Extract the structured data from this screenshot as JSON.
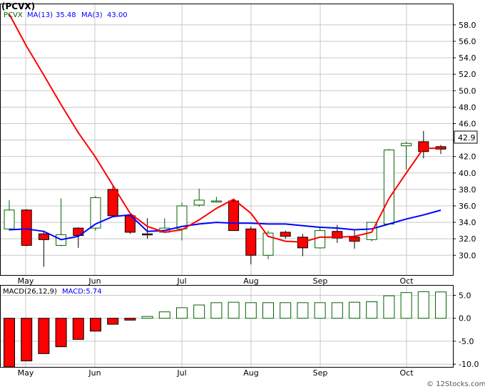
{
  "watermark": "© 12Stocks.com",
  "price_chart": {
    "ticker_label": "(PCVX)",
    "legend_symbol": "PCVX",
    "ma13_label": "MA(13)",
    "ma13_value": "35.48",
    "ma3_label": "MA(3)",
    "ma3_value": "43.00",
    "last_price_label": "42.9",
    "colors": {
      "up_fill": "#ffffff",
      "up_stroke": "#006400",
      "down_fill": "#ff0000",
      "ma13": "#0000ff",
      "ma3": "#ff0000",
      "grid": "#c8c8c8"
    }
  },
  "macd_panel": {
    "label": "MACD(26,12,9)",
    "value_label": "MACD:5.74"
  },
  "chart_data": [
    {
      "type": "candlestick",
      "x_month_labels": [
        "May",
        "Jun",
        "Jul",
        "Aug",
        "Sep",
        "Oct"
      ],
      "y_ticks": [
        "30.0",
        "32.0",
        "34.0",
        "36.0",
        "38.0",
        "40.0",
        "42.0",
        "44.0",
        "46.0",
        "48.0",
        "50.0",
        "52.0",
        "54.0",
        "56.0",
        "58.0"
      ],
      "ylim": [
        27.6,
        60.5
      ],
      "candles": [
        {
          "o": 33.2,
          "h": 36.7,
          "l": 33.0,
          "c": 35.5
        },
        {
          "o": 35.5,
          "h": 35.6,
          "l": 31.1,
          "c": 31.2
        },
        {
          "o": 32.6,
          "h": 33.0,
          "l": 28.6,
          "c": 31.9
        },
        {
          "o": 31.2,
          "h": 36.9,
          "l": 31.1,
          "c": 32.5
        },
        {
          "o": 33.3,
          "h": 33.4,
          "l": 30.9,
          "c": 32.4
        },
        {
          "o": 33.3,
          "h": 37.2,
          "l": 33.0,
          "c": 37.0
        },
        {
          "o": 38.0,
          "h": 38.5,
          "l": 34.6,
          "c": 34.8
        },
        {
          "o": 34.8,
          "h": 34.9,
          "l": 32.6,
          "c": 32.8
        },
        {
          "o": 32.6,
          "h": 34.5,
          "l": 32.0,
          "c": 32.5
        },
        {
          "o": 32.8,
          "h": 34.5,
          "l": 32.7,
          "c": 33.3
        },
        {
          "o": 33.2,
          "h": 36.4,
          "l": 31.8,
          "c": 36.0
        },
        {
          "o": 36.1,
          "h": 38.1,
          "l": 35.9,
          "c": 36.7
        },
        {
          "o": 36.5,
          "h": 37.1,
          "l": 36.4,
          "c": 36.6
        },
        {
          "o": 36.6,
          "h": 36.7,
          "l": 33.0,
          "c": 33.0
        },
        {
          "o": 33.2,
          "h": 33.5,
          "l": 28.9,
          "c": 30.0
        },
        {
          "o": 30.0,
          "h": 33.0,
          "l": 29.5,
          "c": 32.7
        },
        {
          "o": 32.8,
          "h": 33.0,
          "l": 32.0,
          "c": 32.3
        },
        {
          "o": 32.2,
          "h": 32.6,
          "l": 29.9,
          "c": 30.9
        },
        {
          "o": 30.9,
          "h": 33.5,
          "l": 30.8,
          "c": 33.0
        },
        {
          "o": 32.9,
          "h": 33.7,
          "l": 31.5,
          "c": 32.1
        },
        {
          "o": 32.2,
          "h": 33.0,
          "l": 30.8,
          "c": 31.7
        },
        {
          "o": 31.9,
          "h": 34.0,
          "l": 31.7,
          "c": 34.0
        },
        {
          "o": 33.8,
          "h": 42.9,
          "l": 33.8,
          "c": 42.8
        },
        {
          "o": 43.3,
          "h": 43.8,
          "l": 40.4,
          "c": 43.6
        },
        {
          "o": 43.8,
          "h": 45.1,
          "l": 41.8,
          "c": 42.6
        },
        {
          "o": 43.2,
          "h": 43.4,
          "l": 42.3,
          "c": 42.9
        }
      ],
      "ma13": [
        33.1,
        33.2,
        32.9,
        31.9,
        32.3,
        33.8,
        34.7,
        34.9,
        32.9,
        33.0,
        33.5,
        33.8,
        34.0,
        33.9,
        33.9,
        33.8,
        33.8,
        33.6,
        33.4,
        33.3,
        33.1,
        33.2,
        33.8,
        34.4,
        34.9,
        35.48
      ],
      "ma3": [
        59.3,
        55.4,
        51.9,
        48.3,
        44.9,
        41.9,
        38.5,
        35.1,
        33.5,
        32.8,
        33.1,
        34.3,
        35.7,
        36.8,
        35.1,
        32.3,
        31.7,
        31.6,
        32.2,
        32.2,
        32.3,
        32.8,
        36.9,
        40.0,
        43.0,
        43.0
      ]
    },
    {
      "type": "bar",
      "title": "MACD(26,12,9)",
      "x_month_labels": [
        "May",
        "Jun",
        "Jul",
        "Aug",
        "Sep",
        "Oct"
      ],
      "y_ticks": [
        "5.0",
        "0.0",
        "-5.0",
        "-10.0"
      ],
      "ylim": [
        -10.6,
        7.1
      ],
      "values": [
        -10.6,
        -9.3,
        -7.7,
        -6.2,
        -4.6,
        -2.8,
        -1.3,
        -0.4,
        0.4,
        1.4,
        2.3,
        2.9,
        3.4,
        3.5,
        3.4,
        3.4,
        3.4,
        3.4,
        3.4,
        3.4,
        3.5,
        3.6,
        4.9,
        5.6,
        5.8,
        5.74
      ]
    }
  ]
}
